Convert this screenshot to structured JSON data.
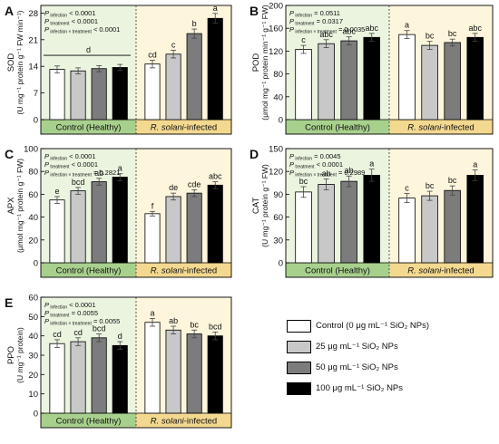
{
  "legend": {
    "items": [
      {
        "label": "Control (0 μg mL⁻¹ SiO₂ NPs)",
        "color": "#ffffff"
      },
      {
        "label": "25 μg mL⁻¹ SiO₂ NPs",
        "color": "#c8c8c8"
      },
      {
        "label": "50 μg mL⁻¹ SiO₂ NPs",
        "color": "#7c7c7c"
      },
      {
        "label": "100 μg mL⁻¹ SiO₂ NPs",
        "color": "#000000"
      }
    ]
  },
  "colors": {
    "healthy_bg": "#eaf4df",
    "healthy_band": "#a8d08d",
    "infected_bg": "#fdf5dc",
    "infected_band": "#f3d890"
  },
  "chart_data": [
    {
      "panel": "A",
      "type": "bar",
      "ylabel": [
        "SOD",
        "(U mg⁻¹ protein g⁻¹ FW min⁻¹)"
      ],
      "ylim": [
        0,
        30
      ],
      "yticks": [
        0,
        7,
        14,
        21,
        28
      ],
      "groups": [
        "Control (Healthy)",
        "R. solani-infected"
      ],
      "series": [
        "Control",
        "25",
        "50",
        "100"
      ],
      "values": [
        [
          13.2,
          12.8,
          13.4,
          13.7
        ],
        [
          14.6,
          17.2,
          22.6,
          26.6
        ]
      ],
      "errors": [
        [
          0.9,
          0.8,
          0.8,
          0.8
        ],
        [
          1.0,
          1.0,
          1.2,
          1.3
        ]
      ],
      "letters": [
        [
          "",
          "",
          "",
          ""
        ],
        [
          "cd",
          "c",
          "b",
          "a"
        ]
      ],
      "bracket_label": "d",
      "stats": [
        [
          "infection",
          "< 0.0001"
        ],
        [
          "treatment",
          "< 0.0001"
        ],
        [
          "infection × treatment",
          "< 0.0001"
        ]
      ]
    },
    {
      "panel": "B",
      "type": "bar",
      "ylabel": [
        "POD",
        "(μmol mg⁻¹ protein min⁻¹ g⁻¹ FW)"
      ],
      "ylim": [
        0,
        200
      ],
      "yticks": [
        0,
        40,
        80,
        120,
        160,
        200
      ],
      "groups": [
        "Control (Healthy)",
        "R. solani-infected"
      ],
      "series": [
        "Control",
        "25",
        "50",
        "100"
      ],
      "values": [
        [
          123,
          133,
          138,
          144
        ],
        [
          149,
          130,
          135,
          144
        ]
      ],
      "errors": [
        [
          7,
          7,
          7,
          7
        ],
        [
          7,
          7,
          6,
          7
        ]
      ],
      "letters": [
        [
          "c",
          "abc",
          "abc",
          "abc"
        ],
        [
          "a",
          "bc",
          "bc",
          "abc"
        ]
      ],
      "stats": [
        [
          "infection",
          "= 0.0511"
        ],
        [
          "treatment",
          "= 0.0317"
        ],
        [
          "infection × treatment",
          "= 0.0035"
        ]
      ]
    },
    {
      "panel": "C",
      "type": "bar",
      "ylabel": [
        "APX",
        "(μmol mg⁻¹ protein g⁻¹ FW)"
      ],
      "ylim": [
        0,
        100
      ],
      "yticks": [
        0,
        20,
        40,
        60,
        80,
        100
      ],
      "groups": [
        "Control (Healthy)",
        "R. solani-infected"
      ],
      "series": [
        "Control",
        "25",
        "50",
        "100"
      ],
      "values": [
        [
          55,
          63,
          71,
          75
        ],
        [
          43,
          58,
          61,
          68
        ]
      ],
      "errors": [
        [
          3,
          3,
          3,
          3
        ],
        [
          2,
          3,
          3,
          3
        ]
      ],
      "letters": [
        [
          "e",
          "bcd",
          "ab",
          "a"
        ],
        [
          "f",
          "de",
          "cde",
          "abc"
        ]
      ],
      "stats": [
        [
          "infection",
          "< 0.0001"
        ],
        [
          "treatment",
          "< 0.0001"
        ],
        [
          "infection × treatment",
          "= 0.2821"
        ]
      ]
    },
    {
      "panel": "D",
      "type": "bar",
      "ylabel": [
        "CAT",
        "(U mg⁻¹ protein g⁻¹ FW)"
      ],
      "ylim": [
        0,
        150
      ],
      "yticks": [
        0,
        30,
        60,
        90,
        120,
        150
      ],
      "groups": [
        "Control (Healthy)",
        "R. solani-infected"
      ],
      "series": [
        "Control",
        "25",
        "50",
        "100"
      ],
      "values": [
        [
          93,
          103,
          107,
          115
        ],
        [
          85,
          88,
          95,
          115
        ]
      ],
      "errors": [
        [
          7,
          7,
          7,
          8
        ],
        [
          6,
          6,
          6,
          7
        ]
      ],
      "letters": [
        [
          "bc",
          "ab",
          "ab",
          "a"
        ],
        [
          "c",
          "bc",
          "bc",
          "a"
        ]
      ],
      "stats": [
        [
          "infection",
          "= 0.0045"
        ],
        [
          "treatment",
          "< 0.0001"
        ],
        [
          "infection × treatment",
          "= 0.2989"
        ]
      ]
    },
    {
      "panel": "E",
      "type": "bar",
      "ylabel": [
        "PPO",
        "(U mg⁻¹ protein)"
      ],
      "ylim": [
        0,
        60
      ],
      "yticks": [
        0,
        10,
        20,
        30,
        40,
        50,
        60
      ],
      "groups": [
        "Control (Healthy)",
        "R. solani-infected"
      ],
      "series": [
        "Control",
        "25",
        "50",
        "100"
      ],
      "values": [
        [
          36,
          37,
          39,
          35
        ],
        [
          47,
          43,
          41,
          40
        ]
      ],
      "errors": [
        [
          2,
          2,
          2,
          2
        ],
        [
          2,
          2,
          2,
          2
        ]
      ],
      "letters": [
        [
          "cd",
          "cd",
          "bcd",
          "d"
        ],
        [
          "a",
          "ab",
          "bc",
          "bcd"
        ]
      ],
      "stats": [
        [
          "infection",
          "< 0.0001"
        ],
        [
          "treatment",
          "= 0.0055"
        ],
        [
          "infection × treatment",
          "= 0.0055"
        ]
      ]
    }
  ]
}
